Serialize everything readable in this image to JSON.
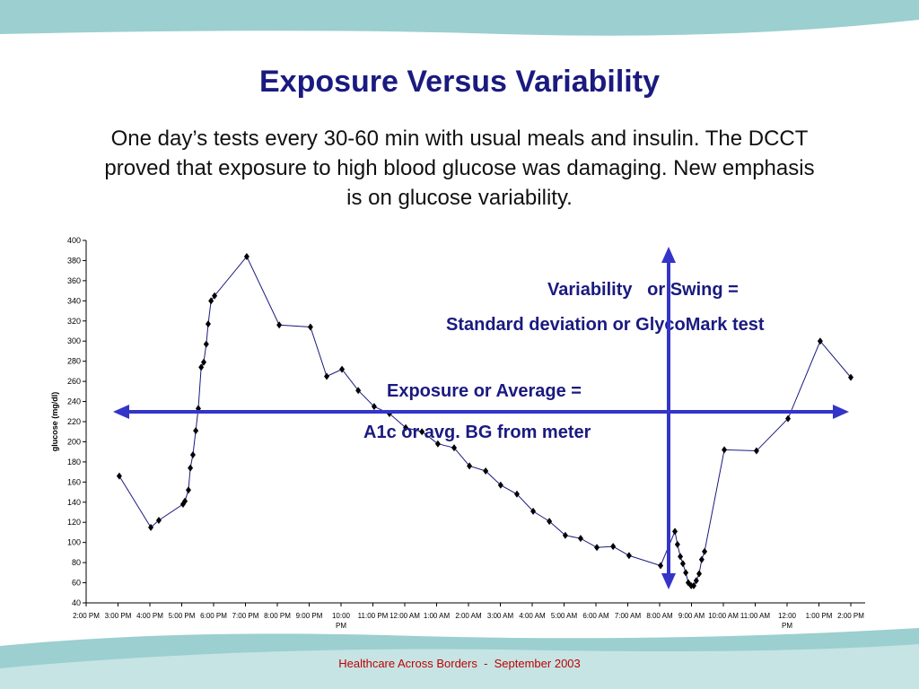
{
  "title": "Exposure Versus Variability",
  "subtitle": "One day’s tests every 30-60 min with usual meals and insulin. The DCCT proved that exposure to high blood glucose was damaging. New emphasis is on glucose variability.",
  "footer": "Healthcare Across Borders  -  September 2003",
  "chart_data": {
    "type": "line",
    "y_label": "glucose (mg/dl)",
    "annotations": [
      "Variability   or Swing =",
      "Standard deviation or GlycoMark test",
      "Exposure or Average =",
      "A1c or avg. BG from meter"
    ],
    "xlim": [
      0,
      24
    ],
    "xticks": [
      {
        "value": 0,
        "label": "2:00 PM"
      },
      {
        "value": 1,
        "label": "3:00 PM"
      },
      {
        "value": 2,
        "label": "4:00 PM"
      },
      {
        "value": 3,
        "label": "5:00 PM"
      },
      {
        "value": 4,
        "label": "6:00 PM"
      },
      {
        "value": 5,
        "label": "7:00 PM"
      },
      {
        "value": 6,
        "label": "8:00 PM"
      },
      {
        "value": 7,
        "label": "9:00 PM"
      },
      {
        "value": 8,
        "label": "10:00 PM"
      },
      {
        "value": 9,
        "label": "11:00 PM"
      },
      {
        "value": 10,
        "label": "12:00 AM"
      },
      {
        "value": 11,
        "label": "1:00 AM"
      },
      {
        "value": 12,
        "label": "2:00 AM"
      },
      {
        "value": 13,
        "label": "3:00 AM"
      },
      {
        "value": 14,
        "label": "4:00 AM"
      },
      {
        "value": 15,
        "label": "5:00 AM"
      },
      {
        "value": 16,
        "label": "6:00 AM"
      },
      {
        "value": 17,
        "label": "7:00 AM"
      },
      {
        "value": 18,
        "label": "8:00 AM"
      },
      {
        "value": 19,
        "label": "9:00 AM"
      },
      {
        "value": 20,
        "label": "10:00 AM"
      },
      {
        "value": 21,
        "label": "11:00 AM"
      },
      {
        "value": 22,
        "label": "12:00 PM"
      },
      {
        "value": 23,
        "label": "1:00 PM"
      },
      {
        "value": 24,
        "label": "2:00 PM"
      }
    ],
    "ylim": [
      40,
      400
    ],
    "yticks": [
      40,
      60,
      80,
      100,
      120,
      140,
      160,
      180,
      200,
      220,
      240,
      260,
      280,
      300,
      320,
      340,
      360,
      380,
      400
    ],
    "color": "#1a1a80",
    "x": [
      1.04,
      2.03,
      2.28,
      3.04,
      3.1,
      3.21,
      3.27,
      3.35,
      3.44,
      3.52,
      3.61,
      3.69,
      3.77,
      3.83,
      3.92,
      4.03,
      5.04,
      6.06,
      7.04,
      7.55,
      8.03,
      8.54,
      9.04,
      9.52,
      10.03,
      10.54,
      11.04,
      11.55,
      12.03,
      12.54,
      13.01,
      13.52,
      14.03,
      14.54,
      15.04,
      15.52,
      16.03,
      16.54,
      17.04,
      18.03,
      18.48,
      18.56,
      18.65,
      18.73,
      18.82,
      18.9,
      18.99,
      19.07,
      19.15,
      19.24,
      19.32,
      19.41,
      20.03,
      21.04,
      22.03,
      23.04,
      24
    ],
    "values": [
      166,
      115,
      122,
      138,
      141,
      152,
      174,
      187,
      211,
      233,
      274,
      279,
      297,
      317,
      340,
      345,
      384,
      316,
      314,
      265,
      272,
      251,
      235,
      228,
      214,
      210,
      198,
      194,
      176,
      171,
      157,
      148,
      131,
      121,
      107,
      104,
      95,
      96,
      87,
      77,
      111,
      98,
      86,
      79,
      70,
      60,
      57,
      57,
      62,
      69,
      83,
      91,
      192,
      191,
      223,
      300,
      264
    ]
  }
}
